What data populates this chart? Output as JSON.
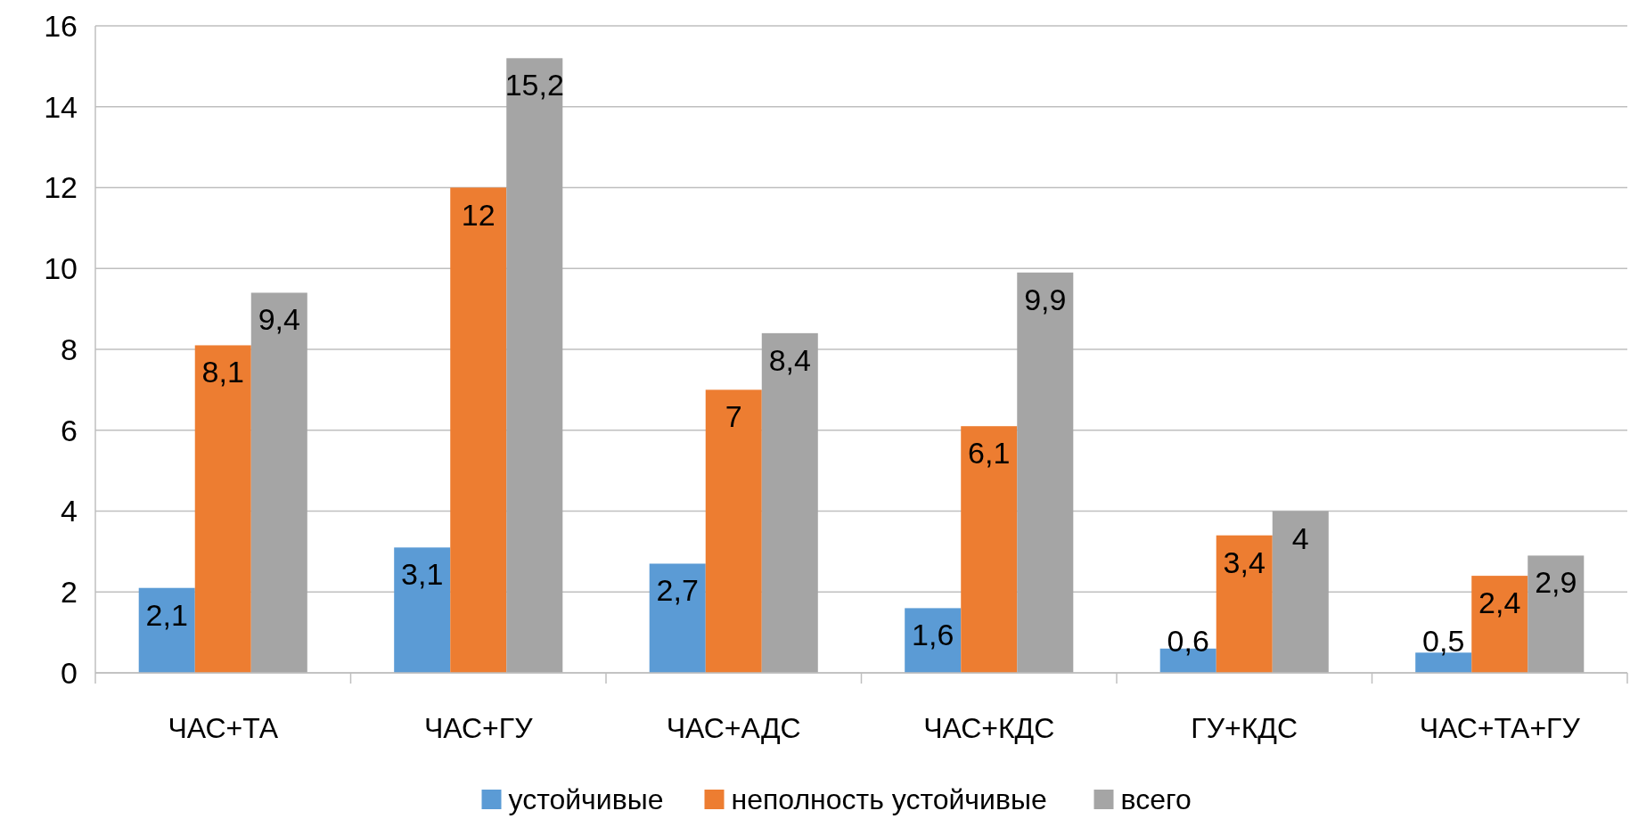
{
  "chart_data": {
    "type": "bar",
    "categories": [
      "ЧАС+ТА",
      "ЧАС+ГУ",
      "ЧАС+АДС",
      "ЧАС+КДС",
      "ГУ+КДС",
      "ЧАС+ТА+ГУ"
    ],
    "series": [
      {
        "name": "устойчивые",
        "color": "#5b9bd5",
        "values": [
          2.1,
          3.1,
          2.7,
          1.6,
          0.6,
          0.5
        ],
        "value_labels": [
          "2,1",
          "3,1",
          "2,7",
          "1,6",
          "0,6",
          "0,5"
        ]
      },
      {
        "name": "неполность устойчивые",
        "color": "#ed7d31",
        "values": [
          8.1,
          12,
          7,
          6.1,
          3.4,
          2.4
        ],
        "value_labels": [
          "8,1",
          "12",
          "7",
          "6,1",
          "3,4",
          "2,4"
        ]
      },
      {
        "name": "всего",
        "color": "#a5a5a5",
        "values": [
          9.4,
          15.2,
          8.4,
          9.9,
          4,
          2.9
        ],
        "value_labels": [
          "9,4",
          "15,2",
          "8,4",
          "9,9",
          "4",
          "2,9"
        ]
      }
    ],
    "ylim": [
      0,
      16
    ],
    "yticks": [
      0,
      2,
      4,
      6,
      8,
      10,
      12,
      14,
      16
    ],
    "grid": "y",
    "legend": "bottom"
  }
}
